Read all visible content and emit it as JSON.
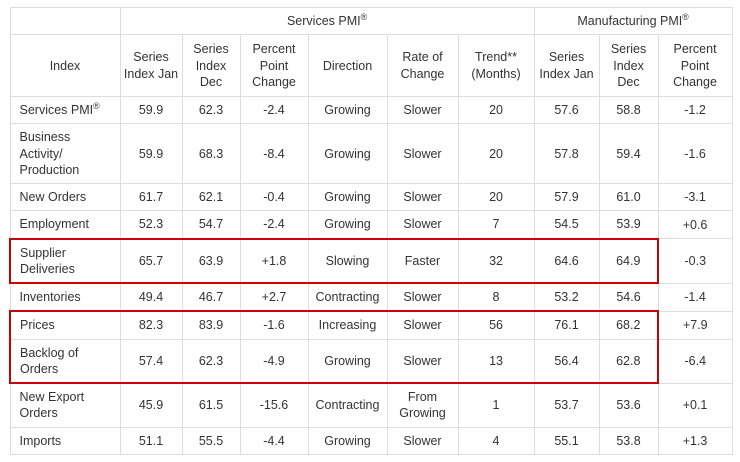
{
  "chart_data": {
    "type": "table",
    "group_headers": [
      {
        "name": "corner-cell",
        "label": "",
        "sup": "",
        "span": 1
      },
      {
        "name": "services-pmi-group-header",
        "label": "Services PMI",
        "sup": "®",
        "span": 6
      },
      {
        "name": "manufacturing-pmi-group-header",
        "label": "Manufacturing PMI",
        "sup": "®",
        "span": 3
      }
    ],
    "columns": [
      "Index",
      "Series\nIndex Jan",
      "Series\nIndex\nDec",
      "Percent\nPoint\nChange",
      "Direction",
      "Rate of\nChange",
      "Trend**\n(Months)",
      "Series\nIndex Jan",
      "Series\nIndex\nDec",
      "Percent\nPoint\nChange"
    ],
    "rows": [
      {
        "index": "Services PMI",
        "index_sup": "®",
        "highlight": "",
        "cells": [
          "59.9",
          "62.3",
          "-2.4",
          "Growing",
          "Slower",
          "20",
          "57.6",
          "58.8",
          "-1.2"
        ]
      },
      {
        "index": "Business Activity/\nProduction",
        "index_sup": "",
        "highlight": "",
        "cells": [
          "59.9",
          "68.3",
          "-8.4",
          "Growing",
          "Slower",
          "20",
          "57.8",
          "59.4",
          "-1.6"
        ]
      },
      {
        "index": "New Orders",
        "index_sup": "",
        "highlight": "",
        "cells": [
          "61.7",
          "62.1",
          "-0.4",
          "Growing",
          "Slower",
          "20",
          "57.9",
          "61.0",
          "-3.1"
        ]
      },
      {
        "index": "Employment",
        "index_sup": "",
        "highlight": "",
        "cells": [
          "52.3",
          "54.7",
          "-2.4",
          "Growing",
          "Slower",
          "7",
          "54.5",
          "53.9",
          "+0.6"
        ]
      },
      {
        "index": "Supplier\nDeliveries",
        "index_sup": "",
        "highlight": "box",
        "cells": [
          "65.7",
          "63.9",
          "+1.8",
          "Slowing",
          "Faster",
          "32",
          "64.6",
          "64.9",
          "-0.3"
        ]
      },
      {
        "index": "Inventories",
        "index_sup": "",
        "highlight": "",
        "cells": [
          "49.4",
          "46.7",
          "+2.7",
          "Contracting",
          "Slower",
          "8",
          "53.2",
          "54.6",
          "-1.4"
        ]
      },
      {
        "index": "Prices",
        "index_sup": "",
        "highlight": "box-top",
        "cells": [
          "82.3",
          "83.9",
          "-1.6",
          "Increasing",
          "Slower",
          "56",
          "76.1",
          "68.2",
          "+7.9"
        ]
      },
      {
        "index": "Backlog of Orders",
        "index_sup": "",
        "highlight": "box-bottom",
        "cells": [
          "57.4",
          "62.3",
          "-4.9",
          "Growing",
          "Slower",
          "13",
          "56.4",
          "62.8",
          "-6.4"
        ]
      },
      {
        "index": "New Export\nOrders",
        "index_sup": "",
        "highlight": "",
        "cells": [
          "45.9",
          "61.5",
          "-15.6",
          "Contracting",
          "From\nGrowing",
          "1",
          "53.7",
          "53.6",
          "+0.1"
        ]
      },
      {
        "index": "Imports",
        "index_sup": "",
        "highlight": "",
        "cells": [
          "51.1",
          "55.5",
          "-4.4",
          "Growing",
          "Slower",
          "4",
          "55.1",
          "53.8",
          "+1.3"
        ]
      }
    ],
    "highlight_end_column": 8,
    "colors": {
      "highlight_box": "#cc0000",
      "table_border": "#dddddd",
      "text": "#333333",
      "background": "#ffffff"
    }
  }
}
